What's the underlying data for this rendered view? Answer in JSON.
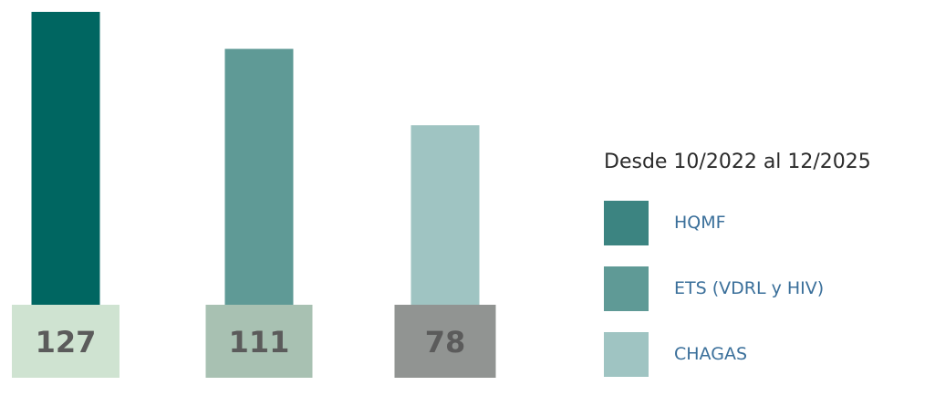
{
  "chart_data": {
    "type": "bar",
    "categories": [
      "HQMF",
      "ETS (VDRL y HIV)",
      "CHAGAS"
    ],
    "values": [
      127,
      111,
      78
    ],
    "value_labels": [
      "127",
      "111",
      "78"
    ],
    "bar_colors": [
      "#006661",
      "#5f9a96",
      "#9fc4c2"
    ],
    "label_box_colors": [
      "#cfe3d1",
      "#a8c1b2",
      "#919492"
    ],
    "ylim": [
      0,
      140
    ]
  },
  "legend": {
    "title": "Desde 10/2022 al 12/2025",
    "items": [
      {
        "label": "HQMF",
        "color": "#3c8481"
      },
      {
        "label": "ETS (VDRL y HIV)",
        "color": "#5f9a96"
      },
      {
        "label": "CHAGAS",
        "color": "#9fc4c2"
      }
    ]
  }
}
